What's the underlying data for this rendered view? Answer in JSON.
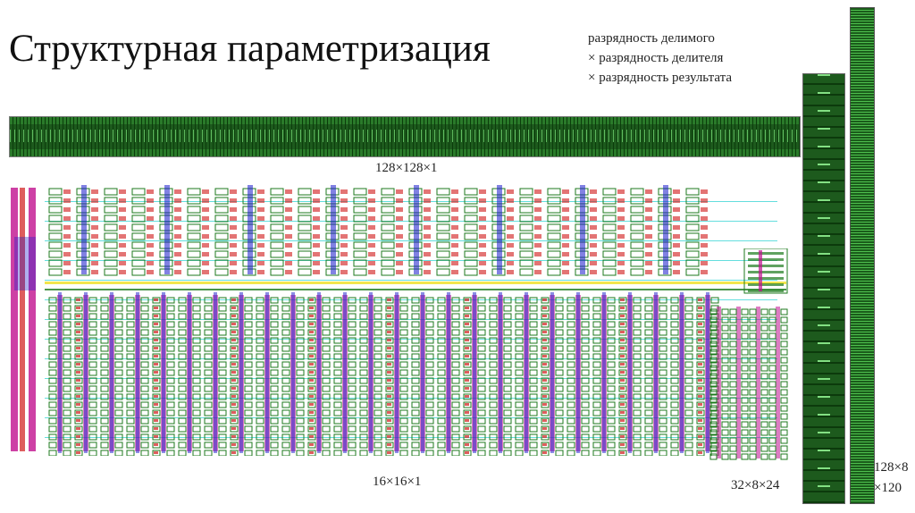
{
  "title": "Структурная параметризация",
  "legend": {
    "line1": "разрядность делимого",
    "line2": "× разрядность делителя",
    "line3": "× разрядность результата"
  },
  "labels": {
    "wide": "128×128×1",
    "small": "16×16×1",
    "mid": "32×8×24",
    "tall_line1": "128×8",
    "tall_line2": "×120"
  },
  "colors": {
    "layout_green": "#1d7a1d",
    "layout_red": "#d01818",
    "layout_blue": "#1a1acc",
    "layout_cyan": "#22d0d0",
    "layout_magenta": "#c0108f",
    "layout_yellow": "#f0e020"
  }
}
